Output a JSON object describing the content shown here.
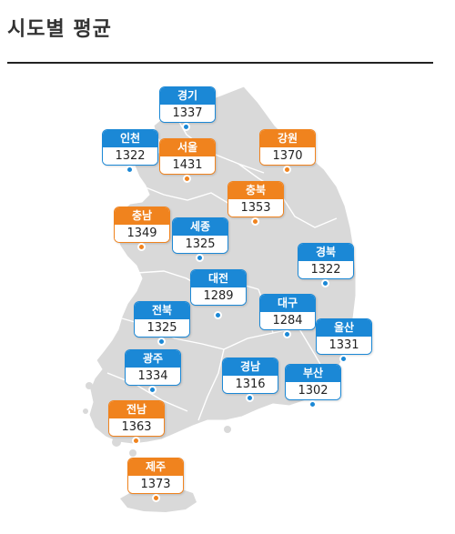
{
  "title": "시도별 평균",
  "colors": {
    "high": "#f0831e",
    "low": "#1b88d6",
    "land": "#d9d9d9"
  },
  "regions": [
    {
      "id": "gyeonggi",
      "name": "경기",
      "value": "1337",
      "level": "low"
    },
    {
      "id": "incheon",
      "name": "인천",
      "value": "1322",
      "level": "low"
    },
    {
      "id": "seoul",
      "name": "서울",
      "value": "1431",
      "level": "high"
    },
    {
      "id": "gangwon",
      "name": "강원",
      "value": "1370",
      "level": "high"
    },
    {
      "id": "chungbuk",
      "name": "충북",
      "value": "1353",
      "level": "high"
    },
    {
      "id": "chungnam",
      "name": "충남",
      "value": "1349",
      "level": "high"
    },
    {
      "id": "sejong",
      "name": "세종",
      "value": "1325",
      "level": "low"
    },
    {
      "id": "gyeongbuk",
      "name": "경북",
      "value": "1322",
      "level": "low"
    },
    {
      "id": "daejeon",
      "name": "대전",
      "value": "1289",
      "level": "low"
    },
    {
      "id": "jeonbuk",
      "name": "전북",
      "value": "1325",
      "level": "low"
    },
    {
      "id": "daegu",
      "name": "대구",
      "value": "1284",
      "level": "low"
    },
    {
      "id": "ulsan",
      "name": "울산",
      "value": "1331",
      "level": "low"
    },
    {
      "id": "gwangju",
      "name": "광주",
      "value": "1334",
      "level": "low"
    },
    {
      "id": "gyeongnam",
      "name": "경남",
      "value": "1316",
      "level": "low"
    },
    {
      "id": "busan",
      "name": "부산",
      "value": "1302",
      "level": "low"
    },
    {
      "id": "jeonnam",
      "name": "전남",
      "value": "1363",
      "level": "high"
    },
    {
      "id": "jeju",
      "name": "제주",
      "value": "1373",
      "level": "high"
    }
  ]
}
